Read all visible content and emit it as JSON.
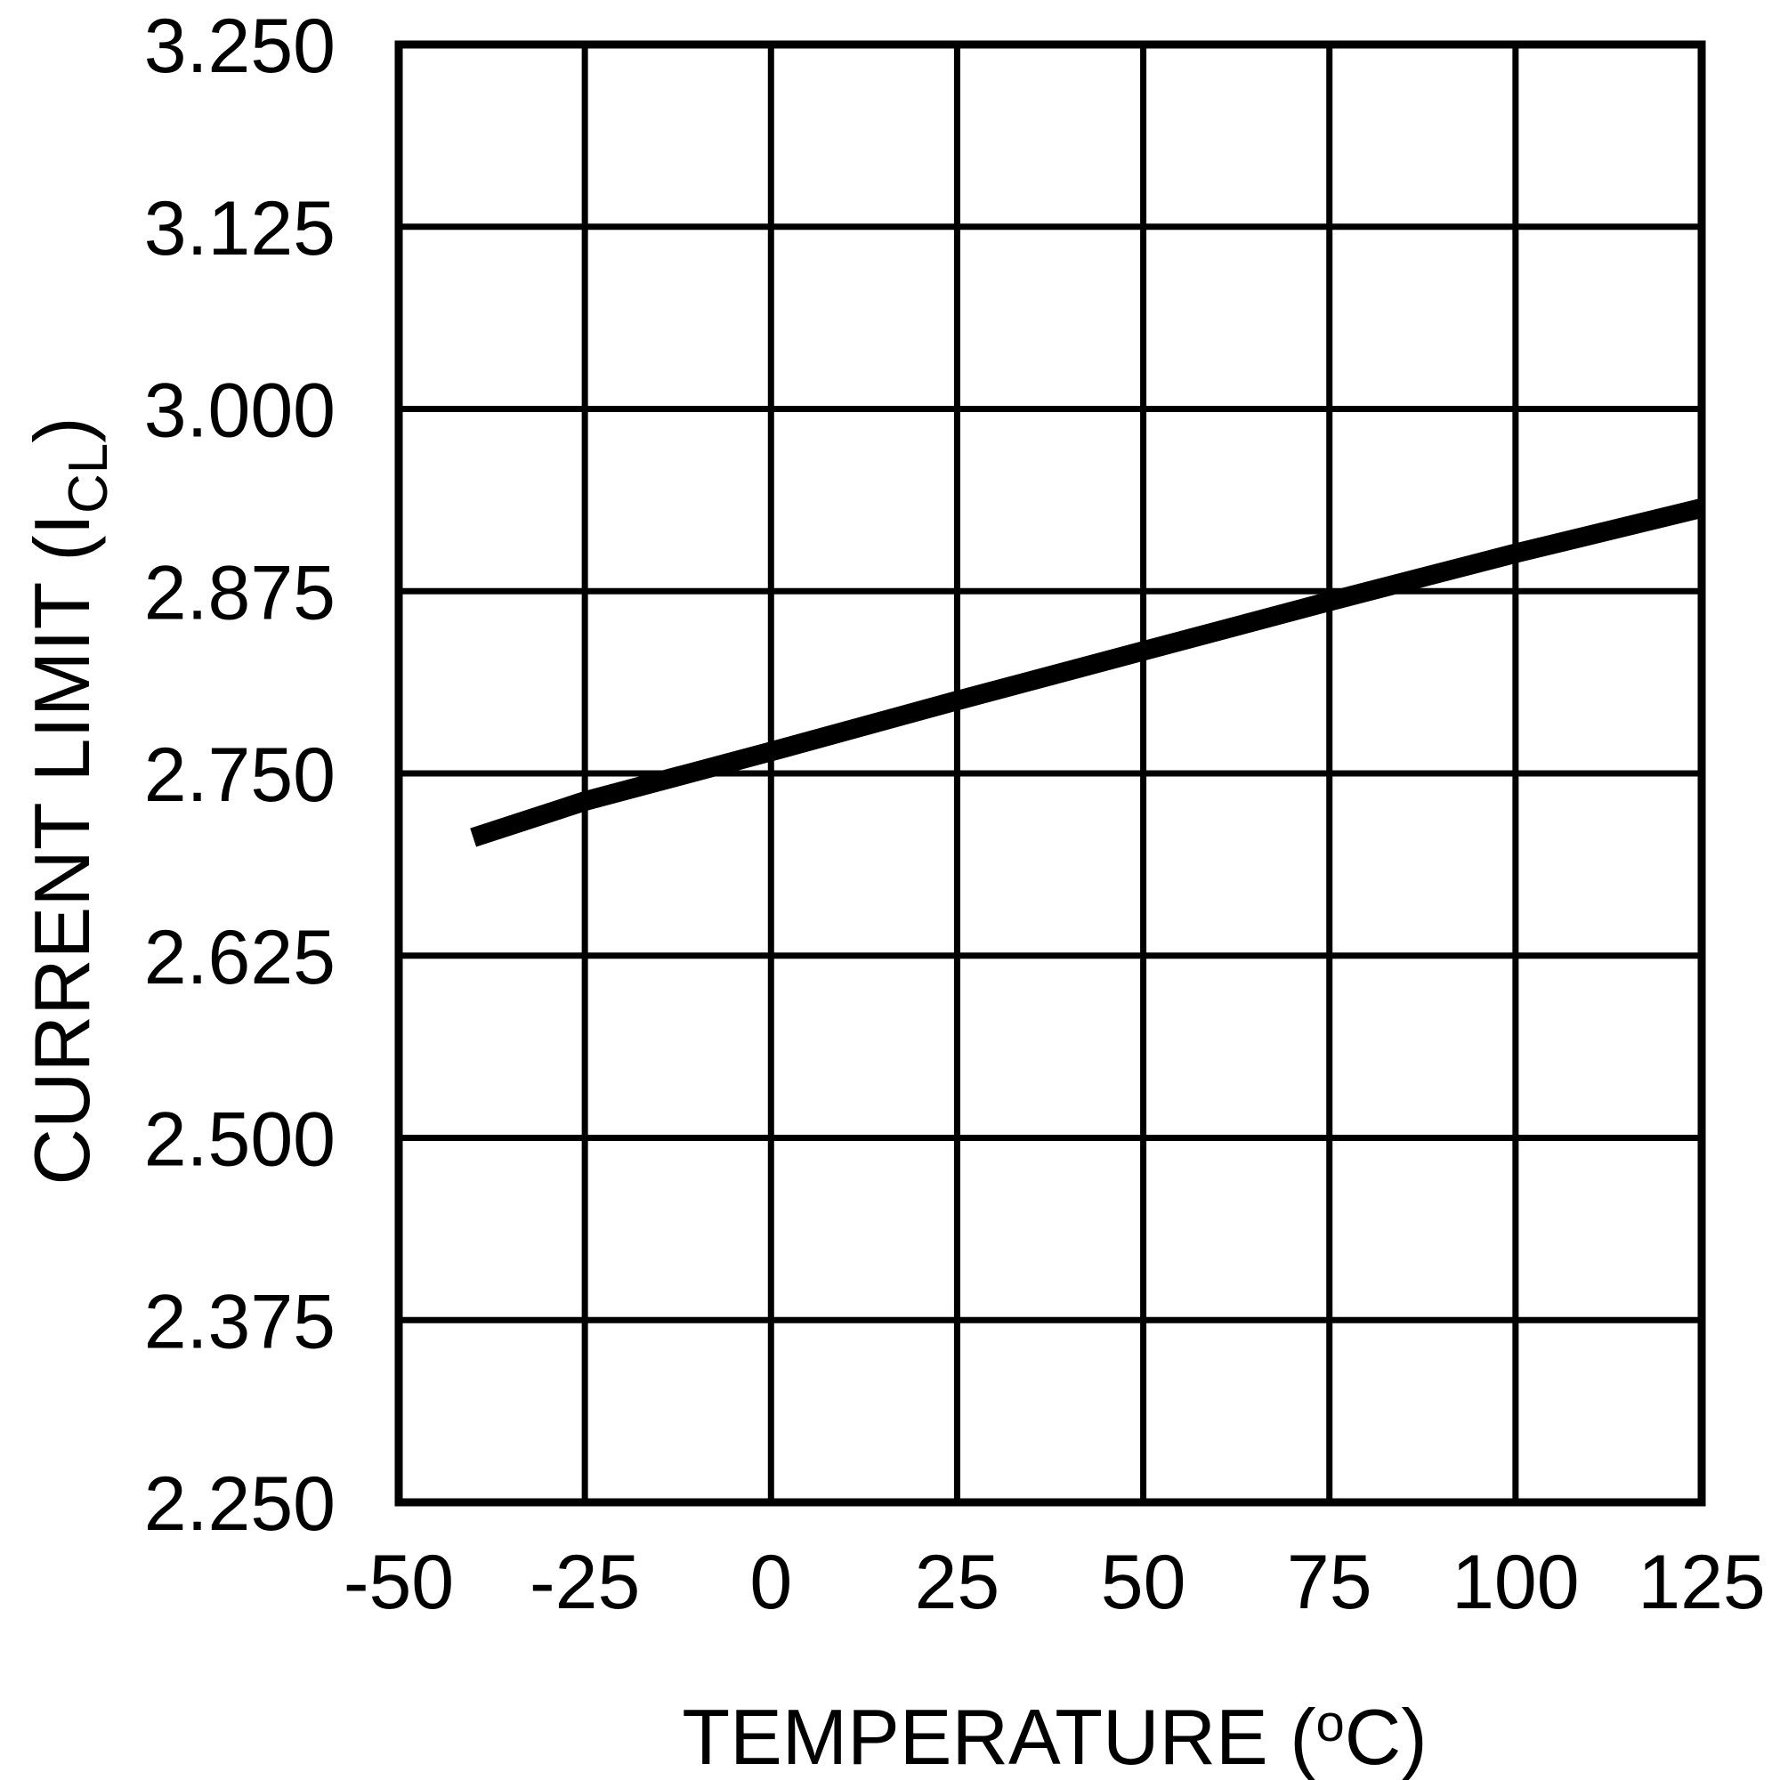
{
  "figure": {
    "background_color": "#ffffff",
    "ink_color": "#000000"
  },
  "chart_data": {
    "type": "line",
    "title": "",
    "xlabel": "TEMPERATURE (°C)",
    "xlabel_parts": {
      "main": "TEMPERATURE (",
      "sup": "o",
      "end": "C)"
    },
    "ylabel": "CURRENT LIMIT (ICL)",
    "ylabel_parts": {
      "main": "CURRENT LIMIT (I",
      "sub": "CL",
      "end": ")"
    },
    "x_range": [
      -50,
      125
    ],
    "y_range": [
      2.25,
      3.25
    ],
    "x_ticks": [
      "-50",
      "-25",
      "0",
      "25",
      "50",
      "75",
      "100",
      "125"
    ],
    "y_ticks": [
      "3.250",
      "3.125",
      "3.000",
      "2.875",
      "2.750",
      "2.625",
      "2.500",
      "2.375",
      "2.250"
    ],
    "grid": true,
    "legend_position": "none",
    "series": [
      {
        "name": "current_limit_vs_temperature",
        "x": [
          -40,
          -25,
          0,
          25,
          50,
          75,
          100,
          125
        ],
        "y": [
          2.706,
          2.731,
          2.765,
          2.8,
          2.834,
          2.868,
          2.901,
          2.932
        ]
      }
    ]
  }
}
